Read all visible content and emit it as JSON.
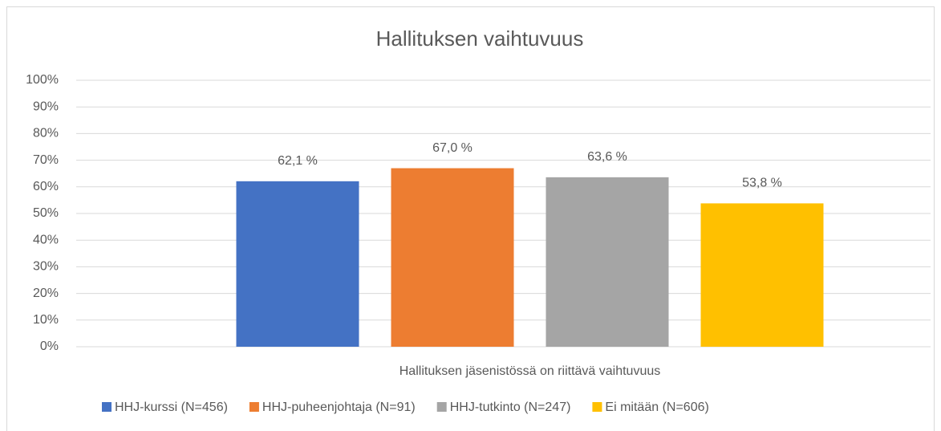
{
  "chart_data": {
    "type": "bar",
    "title": "Hallituksen vaihtuvuus",
    "categories": [
      "Hallituksen jäsenistössä on riittävä vaihtuvuus"
    ],
    "series": [
      {
        "name": "HHJ-kurssi (N=456)",
        "color": "#4472c4",
        "values": [
          62.1
        ],
        "value_labels": [
          "62,1 %"
        ]
      },
      {
        "name": "HHJ-puheenjohtaja (N=91)",
        "color": "#ed7d31",
        "values": [
          67.0
        ],
        "value_labels": [
          "67,0 %"
        ]
      },
      {
        "name": "HHJ-tutkinto (N=247)",
        "color": "#a5a5a5",
        "values": [
          63.6
        ],
        "value_labels": [
          "63,6 %"
        ]
      },
      {
        "name": "Ei mitään (N=606)",
        "color": "#ffc000",
        "values": [
          53.8
        ],
        "value_labels": [
          "53,8 %"
        ]
      }
    ],
    "ylim": [
      0,
      100
    ],
    "yticks": [
      {
        "value": 0,
        "label": "0%"
      },
      {
        "value": 10,
        "label": "10%"
      },
      {
        "value": 20,
        "label": "20%"
      },
      {
        "value": 30,
        "label": "30%"
      },
      {
        "value": 40,
        "label": "40%"
      },
      {
        "value": 50,
        "label": "50%"
      },
      {
        "value": 60,
        "label": "60%"
      },
      {
        "value": 70,
        "label": "70%"
      },
      {
        "value": 80,
        "label": "80%"
      },
      {
        "value": 90,
        "label": "90%"
      },
      {
        "value": 100,
        "label": "100%"
      }
    ],
    "grid": true,
    "legend": "bottom"
  }
}
